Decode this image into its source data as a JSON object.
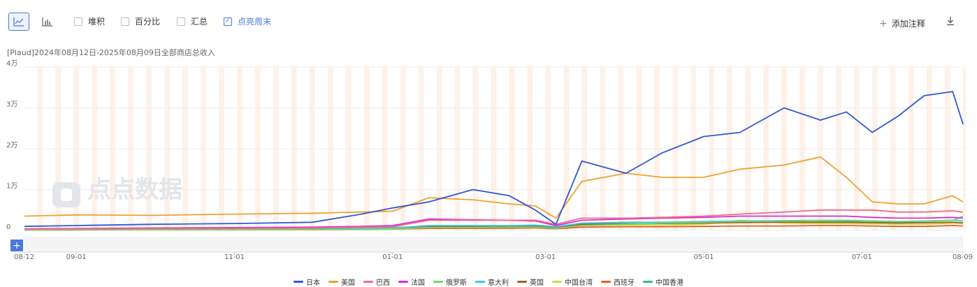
{
  "toolbar": {
    "line_icon": "line-chart-icon",
    "bar_icon": "bar-chart-icon",
    "checkboxes": [
      {
        "label": "堆积",
        "checked": false
      },
      {
        "label": "百分比",
        "checked": false
      },
      {
        "label": "汇总",
        "checked": false
      },
      {
        "label": "点亮周末",
        "checked": true
      }
    ],
    "add_note_label": "添加注释",
    "download_icon": "download-icon"
  },
  "watermark": "点点数据",
  "colors": {
    "accent": "#4a78e0",
    "weekend_band": "#fdf1e8",
    "grid": "#eeeeee"
  },
  "chart_data": {
    "type": "line",
    "title": "[Plaud]2024年08月12日-2025年08月09日全部商店总收入",
    "xlabel": "",
    "ylabel": "",
    "ylim": [
      0,
      40000
    ],
    "yticks": [
      0,
      10000,
      20000,
      30000,
      40000
    ],
    "ytick_labels": [
      "0",
      "1万",
      "2万",
      "3万",
      "4万"
    ],
    "xrange": [
      "2024-08-12",
      "2025-08-09"
    ],
    "xticks": [
      "2024-08-12",
      "2024-09-01",
      "2024-11-01",
      "2025-01-01",
      "2025-03-01",
      "2025-05-01",
      "2025-07-01",
      "2025-08-09"
    ],
    "xtick_labels": [
      "08-12",
      "09-01",
      "11-01",
      "01-01",
      "03-01",
      "05-01",
      "07-01",
      "08-09"
    ],
    "weekend_highlight": true,
    "legend_position": "bottom",
    "x": [
      "2024-08-12",
      "2024-09-01",
      "2024-10-01",
      "2024-11-01",
      "2024-12-01",
      "2024-12-20",
      "2025-01-01",
      "2025-01-15",
      "2025-02-01",
      "2025-02-15",
      "2025-02-25",
      "2025-03-05",
      "2025-03-15",
      "2025-04-01",
      "2025-04-15",
      "2025-05-01",
      "2025-05-15",
      "2025-06-01",
      "2025-06-15",
      "2025-06-25",
      "2025-07-05",
      "2025-07-15",
      "2025-07-25",
      "2025-08-05",
      "2025-08-09"
    ],
    "series": [
      {
        "name": "日本",
        "color": "#2f56d8",
        "values": [
          1000,
          1200,
          1500,
          1700,
          2000,
          4000,
          5500,
          7000,
          10000,
          8500,
          5000,
          1500,
          17000,
          14000,
          19000,
          23000,
          24000,
          30000,
          27000,
          29000,
          24000,
          28000,
          33000,
          34000,
          26000
        ]
      },
      {
        "name": "美国",
        "color": "#f0a030",
        "values": [
          3500,
          3800,
          3700,
          4000,
          4200,
          4500,
          4700,
          8000,
          7500,
          6500,
          6000,
          3000,
          12000,
          14000,
          13000,
          13000,
          15000,
          16000,
          18000,
          13000,
          7000,
          6500,
          6500,
          8500,
          7000
        ]
      },
      {
        "name": "巴西",
        "color": "#f06a8a",
        "values": [
          300,
          400,
          450,
          500,
          600,
          800,
          900,
          2500,
          2500,
          2500,
          2500,
          1500,
          3000,
          3000,
          3200,
          3500,
          4000,
          4500,
          5000,
          5000,
          5000,
          4500,
          4500,
          4800,
          4500
        ]
      },
      {
        "name": "法国",
        "color": "#d52fd5",
        "values": [
          400,
          500,
          600,
          700,
          800,
          1000,
          1200,
          2800,
          2600,
          2500,
          2300,
          1200,
          2500,
          2800,
          3000,
          3200,
          3500,
          3500,
          3500,
          3500,
          3200,
          3000,
          3000,
          3200,
          3000
        ]
      },
      {
        "name": "俄罗斯",
        "color": "#6fd66a",
        "values": [
          100,
          150,
          200,
          200,
          250,
          300,
          400,
          700,
          700,
          800,
          800,
          500,
          1200,
          1500,
          1800,
          2000,
          2200,
          2300,
          2500,
          2500,
          2300,
          2200,
          2200,
          2500,
          3500
        ]
      },
      {
        "name": "意大利",
        "color": "#3cc6f0",
        "values": [
          200,
          250,
          300,
          350,
          400,
          500,
          600,
          1200,
          1200,
          1200,
          1300,
          900,
          1800,
          2000,
          2000,
          2200,
          2300,
          2400,
          2500,
          2400,
          2300,
          2200,
          2300,
          2500,
          2400
        ]
      },
      {
        "name": "英国",
        "color": "#a0642a",
        "values": [
          200,
          250,
          300,
          300,
          350,
          400,
          500,
          1000,
          1000,
          1100,
          1100,
          800,
          1500,
          1600,
          1700,
          1800,
          1900,
          2000,
          2000,
          2000,
          1900,
          1800,
          1900,
          2000,
          1900
        ]
      },
      {
        "name": "中国台湾",
        "color": "#c6e040",
        "values": [
          100,
          150,
          150,
          200,
          250,
          300,
          350,
          700,
          700,
          800,
          800,
          600,
          1200,
          1300,
          1300,
          1500,
          2500,
          1800,
          1700,
          1700,
          1600,
          1500,
          1500,
          1800,
          1600
        ]
      },
      {
        "name": "西班牙",
        "color": "#f05a20",
        "values": [
          100,
          120,
          150,
          180,
          200,
          250,
          300,
          500,
          500,
          550,
          600,
          400,
          800,
          900,
          900,
          1000,
          1100,
          1100,
          1200,
          1200,
          1100,
          1000,
          1000,
          1200,
          1100
        ]
      },
      {
        "name": "中国香港",
        "color": "#2fb89a",
        "values": [
          300,
          350,
          400,
          450,
          500,
          600,
          700,
          1000,
          1000,
          1100,
          1100,
          800,
          1500,
          1700,
          1700,
          1800,
          2000,
          2000,
          2100,
          2100,
          2000,
          1900,
          1900,
          2000,
          1900
        ]
      }
    ]
  }
}
